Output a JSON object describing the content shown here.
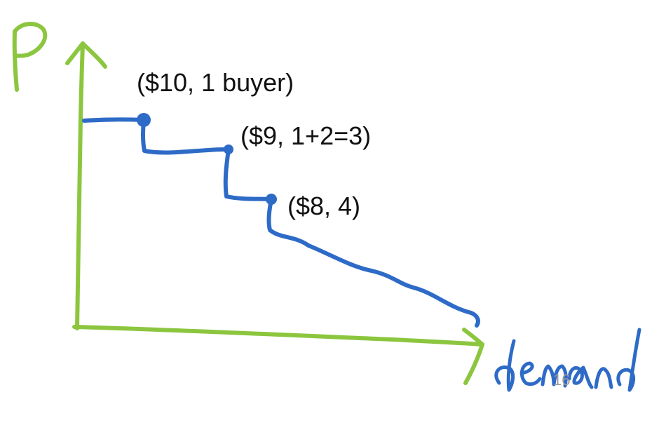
{
  "diagram": {
    "axis_color": "#8cc63f",
    "curve_color": "#2e6bc7",
    "y_axis_label": "p",
    "x_axis_label": "demand",
    "points": [
      {
        "label": "($10, 1 buyer)",
        "price": 10,
        "quantity": 1
      },
      {
        "label": "($9, 1+2=3)",
        "price": 9,
        "quantity": 3
      },
      {
        "label": "($8, 4)",
        "price": 8,
        "quantity": 4
      }
    ],
    "page_number": "16"
  }
}
